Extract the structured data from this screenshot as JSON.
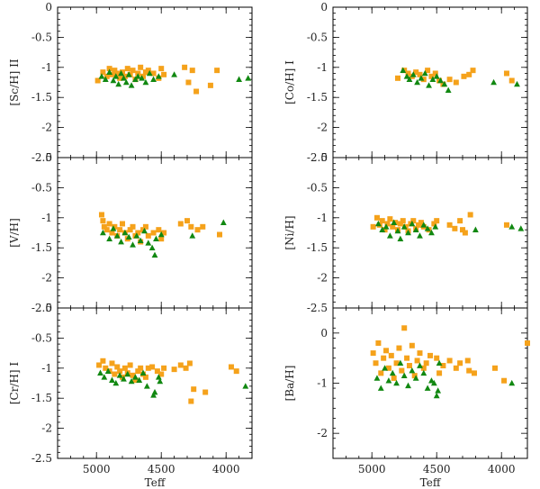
{
  "figure": {
    "xlabel": "Teff",
    "x_tick_labels": [
      "5000",
      "4500",
      "4000"
    ]
  },
  "colors": {
    "square_series": "#f5a21b",
    "triangle_series": "#118811",
    "axes": "#000000"
  },
  "chart_data": [
    {
      "type": "scatter",
      "ylabel": "[Sc/H] II",
      "xlabel": "",
      "xlim": [
        5300,
        3800
      ],
      "ylim": [
        -2.5,
        0
      ],
      "x_ticks": [
        5000,
        4500,
        4000
      ],
      "y_ticks": [
        0,
        -0.5,
        -1,
        -1.5,
        -2,
        -2.5
      ],
      "y_tick_labels": [
        "0",
        "-0.5",
        "-1",
        "-1.5",
        "-2",
        "-2.5"
      ],
      "series": [
        {
          "name": "squares",
          "marker": "square",
          "x": [
            4990,
            4950,
            4920,
            4900,
            4880,
            4860,
            4840,
            4820,
            4800,
            4780,
            4760,
            4740,
            4720,
            4700,
            4680,
            4660,
            4640,
            4620,
            4600,
            4560,
            4520,
            4500,
            4480,
            4320,
            4290,
            4260,
            4230,
            4120,
            4070
          ],
          "y": [
            -1.22,
            -1.08,
            -1.15,
            -1.02,
            -1.12,
            -1.05,
            -1.1,
            -1.18,
            -1.08,
            -1.15,
            -1.02,
            -1.12,
            -1.05,
            -1.2,
            -1.1,
            -1.0,
            -1.15,
            -1.08,
            -1.05,
            -1.1,
            -1.18,
            -1.02,
            -1.12,
            -1.0,
            -1.25,
            -1.05,
            -1.4,
            -1.3,
            -1.05
          ]
        },
        {
          "name": "triangles",
          "marker": "triangle",
          "x": [
            4960,
            4930,
            4900,
            4870,
            4850,
            4830,
            4810,
            4790,
            4770,
            4750,
            4730,
            4700,
            4680,
            4650,
            4620,
            4590,
            4560,
            4520,
            4400,
            3900,
            3830
          ],
          "y": [
            -1.15,
            -1.2,
            -1.08,
            -1.22,
            -1.15,
            -1.28,
            -1.1,
            -1.18,
            -1.25,
            -1.12,
            -1.3,
            -1.2,
            -1.15,
            -1.18,
            -1.25,
            -1.1,
            -1.2,
            -1.15,
            -1.12,
            -1.2,
            -1.18
          ]
        }
      ]
    },
    {
      "type": "scatter",
      "ylabel": "[Co/H] I",
      "xlabel": "",
      "xlim": [
        5300,
        3800
      ],
      "ylim": [
        -2.5,
        0
      ],
      "x_ticks": [
        5000,
        4500,
        4000
      ],
      "y_ticks": [
        0,
        -0.5,
        -1,
        -1.5,
        -2,
        -2.5
      ],
      "y_tick_labels": [
        "0",
        "-0.5",
        "-1",
        "-1.5",
        "-2",
        "-2.5"
      ],
      "series": [
        {
          "name": "squares",
          "marker": "square",
          "x": [
            4800,
            4750,
            4720,
            4690,
            4660,
            4630,
            4600,
            4570,
            4540,
            4510,
            4480,
            4450,
            4400,
            4350,
            4290,
            4250,
            4220,
            3960,
            3920
          ],
          "y": [
            -1.18,
            -1.05,
            -1.1,
            -1.15,
            -1.08,
            -1.12,
            -1.2,
            -1.05,
            -1.15,
            -1.1,
            -1.22,
            -1.28,
            -1.2,
            -1.25,
            -1.15,
            -1.12,
            -1.05,
            -1.1,
            -1.22
          ]
        },
        {
          "name": "triangles",
          "marker": "triangle",
          "x": [
            4760,
            4730,
            4710,
            4680,
            4650,
            4620,
            4590,
            4560,
            4530,
            4500,
            4470,
            4440,
            4410,
            4060,
            3880
          ],
          "y": [
            -1.05,
            -1.15,
            -1.2,
            -1.12,
            -1.25,
            -1.18,
            -1.1,
            -1.3,
            -1.2,
            -1.15,
            -1.22,
            -1.28,
            -1.38,
            -1.25,
            -1.28
          ]
        }
      ]
    },
    {
      "type": "scatter",
      "ylabel": "[V/H]",
      "xlabel": "",
      "xlim": [
        5300,
        3800
      ],
      "ylim": [
        -2.5,
        0
      ],
      "x_ticks": [
        5000,
        4500,
        4000
      ],
      "y_ticks": [
        0,
        -0.5,
        -1,
        -1.5,
        -2,
        -2.5
      ],
      "y_tick_labels": [
        "0",
        "-0.5",
        "-1",
        "-1.5",
        "-2",
        "-2.5"
      ],
      "series": [
        {
          "name": "squares",
          "marker": "square",
          "x": [
            4960,
            4950,
            4940,
            4920,
            4900,
            4880,
            4860,
            4840,
            4820,
            4800,
            4780,
            4760,
            4740,
            4720,
            4700,
            4680,
            4660,
            4640,
            4620,
            4600,
            4560,
            4520,
            4500,
            4480,
            4350,
            4300,
            4270,
            4220,
            4180,
            4050
          ],
          "y": [
            -0.95,
            -1.05,
            -1.15,
            -1.2,
            -1.1,
            -1.25,
            -1.15,
            -1.3,
            -1.2,
            -1.1,
            -1.25,
            -1.35,
            -1.2,
            -1.15,
            -1.3,
            -1.25,
            -1.4,
            -1.2,
            -1.15,
            -1.3,
            -1.25,
            -1.2,
            -1.35,
            -1.25,
            -1.1,
            -1.05,
            -1.15,
            -1.2,
            -1.15,
            -1.28
          ]
        },
        {
          "name": "triangles",
          "marker": "triangle",
          "x": [
            4950,
            4900,
            4870,
            4840,
            4810,
            4780,
            4750,
            4720,
            4690,
            4660,
            4630,
            4600,
            4570,
            4550,
            4540,
            4500,
            4260,
            4020
          ],
          "y": [
            -1.25,
            -1.35,
            -1.18,
            -1.3,
            -1.4,
            -1.25,
            -1.32,
            -1.45,
            -1.3,
            -1.38,
            -1.22,
            -1.42,
            -1.5,
            -1.62,
            -1.35,
            -1.28,
            -1.3,
            -1.08
          ]
        }
      ]
    },
    {
      "type": "scatter",
      "ylabel": "[Ni/H]",
      "xlabel": "",
      "xlim": [
        5300,
        3800
      ],
      "ylim": [
        -2.5,
        0
      ],
      "x_ticks": [
        5000,
        4500,
        4000
      ],
      "y_ticks": [
        0,
        -0.5,
        -1,
        -1.5,
        -2,
        -2.5
      ],
      "y_tick_labels": [
        "0",
        "-0.5",
        "-1",
        "-1.5",
        "-2",
        "-2.5"
      ],
      "series": [
        {
          "name": "squares",
          "marker": "square",
          "x": [
            4990,
            4960,
            4940,
            4920,
            4900,
            4880,
            4860,
            4840,
            4820,
            4800,
            4780,
            4760,
            4740,
            4720,
            4700,
            4680,
            4660,
            4640,
            4620,
            4600,
            4560,
            4520,
            4500,
            4400,
            4360,
            4320,
            4300,
            4280,
            4240,
            3960
          ],
          "y": [
            -1.15,
            -1.0,
            -1.12,
            -1.05,
            -1.2,
            -1.1,
            -1.02,
            -1.15,
            -1.08,
            -1.2,
            -1.1,
            -1.05,
            -1.15,
            -1.22,
            -1.1,
            -1.05,
            -1.18,
            -1.12,
            -1.08,
            -1.15,
            -1.2,
            -1.1,
            -1.05,
            -1.12,
            -1.18,
            -1.05,
            -1.2,
            -1.25,
            -0.95,
            -1.12
          ]
        },
        {
          "name": "triangles",
          "marker": "triangle",
          "x": [
            4950,
            4920,
            4890,
            4860,
            4830,
            4800,
            4780,
            4750,
            4720,
            4690,
            4660,
            4630,
            4600,
            4570,
            4540,
            4510,
            4200,
            3920,
            3850
          ],
          "y": [
            -1.1,
            -1.2,
            -1.15,
            -1.3,
            -1.08,
            -1.22,
            -1.35,
            -1.15,
            -1.25,
            -1.1,
            -1.2,
            -1.3,
            -1.12,
            -1.18,
            -1.25,
            -1.15,
            -1.2,
            -1.15,
            -1.18
          ]
        }
      ]
    },
    {
      "type": "scatter",
      "ylabel": "[Cr/H] I",
      "xlabel": "Teff",
      "xlim": [
        5300,
        3800
      ],
      "ylim": [
        -2.5,
        0
      ],
      "x_ticks": [
        5000,
        4500,
        4000
      ],
      "y_ticks": [
        0,
        -0.5,
        -1,
        -1.5,
        -2,
        -2.5
      ],
      "y_tick_labels": [
        "0",
        "-0.5",
        "-1",
        "-1.5",
        "-2",
        "-2.5"
      ],
      "series": [
        {
          "name": "squares",
          "marker": "square",
          "x": [
            4980,
            4950,
            4930,
            4900,
            4880,
            4860,
            4840,
            4820,
            4800,
            4780,
            4760,
            4740,
            4720,
            4700,
            4680,
            4660,
            4640,
            4620,
            4600,
            4570,
            4530,
            4500,
            4480,
            4400,
            4350,
            4310,
            4280,
            4270,
            4250,
            4160,
            3960,
            3920
          ],
          "y": [
            -0.95,
            -0.88,
            -1.0,
            -1.05,
            -0.92,
            -1.1,
            -0.98,
            -1.05,
            -1.15,
            -1.0,
            -1.08,
            -0.95,
            -1.12,
            -1.2,
            -1.05,
            -1.0,
            -1.1,
            -1.15,
            -1.0,
            -0.98,
            -1.05,
            -1.1,
            -1.0,
            -1.02,
            -0.95,
            -1.0,
            -0.92,
            -1.55,
            -1.35,
            -1.4,
            -0.98,
            -1.05
          ]
        },
        {
          "name": "triangles",
          "marker": "triangle",
          "x": [
            4970,
            4940,
            4910,
            4880,
            4850,
            4820,
            4790,
            4760,
            4730,
            4700,
            4670,
            4640,
            4610,
            4560,
            4550,
            4520,
            4510,
            3850
          ],
          "y": [
            -1.08,
            -1.15,
            -1.05,
            -1.2,
            -1.25,
            -1.12,
            -1.18,
            -1.1,
            -1.22,
            -1.15,
            -1.2,
            -1.08,
            -1.3,
            -1.45,
            -1.4,
            -1.15,
            -1.22,
            -1.3
          ]
        }
      ]
    },
    {
      "type": "scatter",
      "ylabel": "[Ba/H]",
      "xlabel": "Teff",
      "xlim": [
        5300,
        3800
      ],
      "ylim": [
        -2.5,
        0.5
      ],
      "x_ticks": [
        5000,
        4500,
        4000
      ],
      "y_ticks": [
        0,
        -1,
        -2
      ],
      "y_tick_labels": [
        "0",
        "-1",
        "-2"
      ],
      "series": [
        {
          "name": "squares",
          "marker": "square",
          "x": [
            4990,
            4970,
            4950,
            4930,
            4910,
            4890,
            4870,
            4850,
            4830,
            4810,
            4790,
            4770,
            4750,
            4730,
            4710,
            4690,
            4670,
            4650,
            4630,
            4600,
            4580,
            4550,
            4500,
            4480,
            4450,
            4400,
            4350,
            4320,
            4260,
            4250,
            4210,
            4050,
            3980,
            3800
          ],
          "y": [
            -0.4,
            -0.6,
            -0.2,
            -0.8,
            -0.5,
            -0.35,
            -0.7,
            -0.45,
            -0.9,
            -0.6,
            -0.3,
            -0.75,
            0.1,
            -0.5,
            -0.65,
            -0.25,
            -0.85,
            -0.55,
            -0.4,
            -0.7,
            -0.6,
            -0.45,
            -0.5,
            -0.8,
            -0.65,
            -0.55,
            -0.7,
            -0.6,
            -0.55,
            -0.75,
            -0.8,
            -0.7,
            -0.95,
            -0.2
          ]
        },
        {
          "name": "triangles",
          "marker": "triangle",
          "x": [
            4960,
            4930,
            4900,
            4870,
            4840,
            4810,
            4780,
            4750,
            4720,
            4690,
            4660,
            4630,
            4600,
            4570,
            4540,
            4520,
            4500,
            4490,
            4480,
            3920
          ],
          "y": [
            -0.9,
            -1.1,
            -0.7,
            -0.95,
            -0.8,
            -1.0,
            -0.6,
            -0.85,
            -1.05,
            -0.75,
            -0.9,
            -0.65,
            -0.8,
            -1.1,
            -0.95,
            -1.0,
            -1.25,
            -1.15,
            -0.6,
            -1.0
          ]
        }
      ]
    }
  ]
}
